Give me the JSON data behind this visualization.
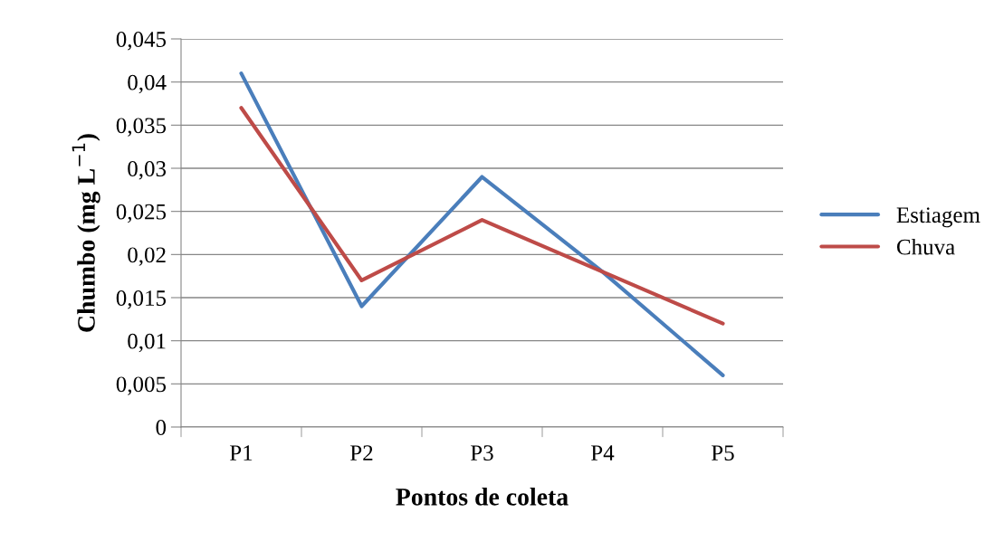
{
  "chart_data": {
    "type": "line",
    "xlabel": "Pontos de coleta",
    "ylabel": "Chumbo (mg L$^{−1}$)",
    "categories": [
      "P1",
      "P2",
      "P3",
      "P4",
      "P5"
    ],
    "series": [
      {
        "name": "Estiagem",
        "color": "#4a7ebb",
        "values": [
          0.041,
          0.014,
          0.029,
          0.018,
          0.006
        ]
      },
      {
        "name": "Chuva",
        "color": "#be4b48",
        "values": [
          0.037,
          0.017,
          0.024,
          0.018,
          0.012
        ]
      }
    ],
    "ylim": [
      0,
      0.045
    ],
    "yticks": [
      {
        "value": 0,
        "label": "0"
      },
      {
        "value": 0.005,
        "label": "0,005"
      },
      {
        "value": 0.01,
        "label": "0,01"
      },
      {
        "value": 0.015,
        "label": "0,015"
      },
      {
        "value": 0.02,
        "label": "0,02"
      },
      {
        "value": 0.025,
        "label": "0,025"
      },
      {
        "value": 0.03,
        "label": "0,03"
      },
      {
        "value": 0.035,
        "label": "0,035"
      },
      {
        "value": 0.04,
        "label": "0,04"
      },
      {
        "value": 0.045,
        "label": "0,045"
      }
    ],
    "grid": "y",
    "legend": "right",
    "marker": "none",
    "line_style": "solid"
  }
}
